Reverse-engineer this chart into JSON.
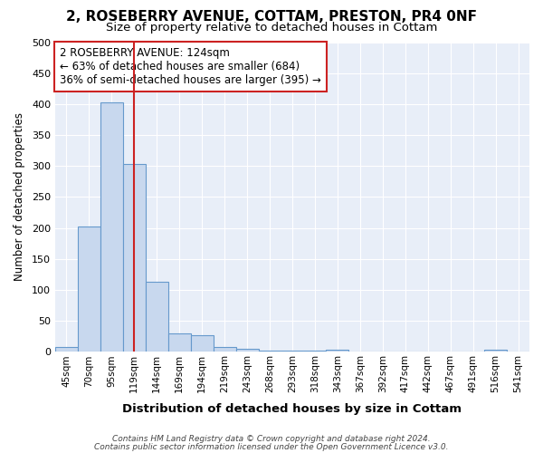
{
  "title": "2, ROSEBERRY AVENUE, COTTAM, PRESTON, PR4 0NF",
  "subtitle": "Size of property relative to detached houses in Cottam",
  "xlabel": "Distribution of detached houses by size in Cottam",
  "ylabel": "Number of detached properties",
  "footer_line1": "Contains HM Land Registry data © Crown copyright and database right 2024.",
  "footer_line2": "Contains public sector information licensed under the Open Government Licence v3.0.",
  "bin_labels": [
    "45sqm",
    "70sqm",
    "95sqm",
    "119sqm",
    "144sqm",
    "169sqm",
    "194sqm",
    "219sqm",
    "243sqm",
    "268sqm",
    "293sqm",
    "318sqm",
    "343sqm",
    "367sqm",
    "392sqm",
    "417sqm",
    "442sqm",
    "467sqm",
    "491sqm",
    "516sqm",
    "541sqm"
  ],
  "bar_heights": [
    8,
    203,
    403,
    303,
    113,
    30,
    27,
    8,
    5,
    2,
    2,
    2,
    4,
    0,
    0,
    0,
    0,
    0,
    0,
    4,
    0
  ],
  "bar_color": "#c8d8ee",
  "bar_edge_color": "#6699cc",
  "fig_bg_color": "#ffffff",
  "plot_bg_color": "#e8eef8",
  "grid_color": "#ffffff",
  "red_line_x": 3,
  "red_line_color": "#cc2222",
  "annotation_text": "2 ROSEBERRY AVENUE: 124sqm\n← 63% of detached houses are smaller (684)\n36% of semi-detached houses are larger (395) →",
  "annotation_box_facecolor": "#ffffff",
  "annotation_box_edgecolor": "#cc2222",
  "ylim": [
    0,
    500
  ],
  "yticks": [
    0,
    50,
    100,
    150,
    200,
    250,
    300,
    350,
    400,
    450,
    500
  ]
}
